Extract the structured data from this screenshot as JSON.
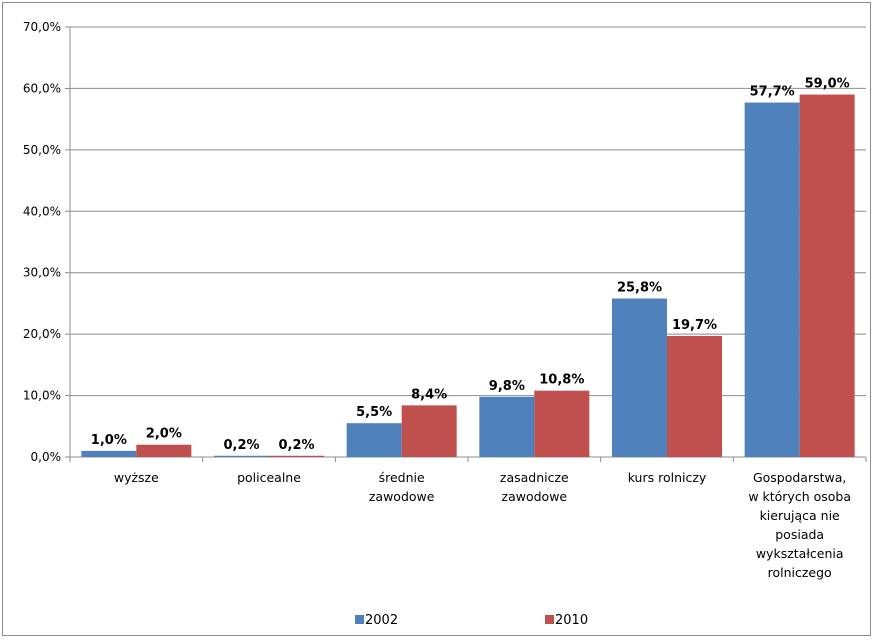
{
  "chart_data": {
    "type": "bar",
    "categories": [
      [
        "wyższe"
      ],
      [
        "policealne"
      ],
      [
        "średnie",
        "zawodowe"
      ],
      [
        "zasadnicze",
        "zawodowe"
      ],
      [
        "kurs rolniczy"
      ],
      [
        "Gospodarstwa,",
        "w których osoba",
        "kierująca nie",
        "posiada",
        "wykształcenia",
        "rolniczego"
      ]
    ],
    "series": [
      {
        "name": "2002",
        "color": "#4f81bd",
        "values": [
          1.0,
          0.2,
          5.5,
          9.8,
          25.8,
          57.7
        ],
        "labels": [
          "1,0%",
          "0,2%",
          "5,5%",
          "9,8%",
          "25,8%",
          "57,7%"
        ]
      },
      {
        "name": "2010",
        "color": "#c0504d",
        "values": [
          2.0,
          0.2,
          8.4,
          10.8,
          19.7,
          59.0
        ],
        "labels": [
          "2,0%",
          "0,2%",
          "8,4%",
          "10,8%",
          "19,7%",
          "59,0%"
        ]
      }
    ],
    "ylim": [
      0,
      70
    ],
    "yticks": [
      0,
      10,
      20,
      30,
      40,
      50,
      60,
      70
    ],
    "ytick_labels": [
      "0,0%",
      "10,0%",
      "20,0%",
      "30,0%",
      "40,0%",
      "50,0%",
      "60,0%",
      "70,0%"
    ],
    "grid": true,
    "legend_position": "bottom",
    "colors": {
      "grid": "#8c8c8c",
      "axis": "#8c8c8c"
    }
  }
}
